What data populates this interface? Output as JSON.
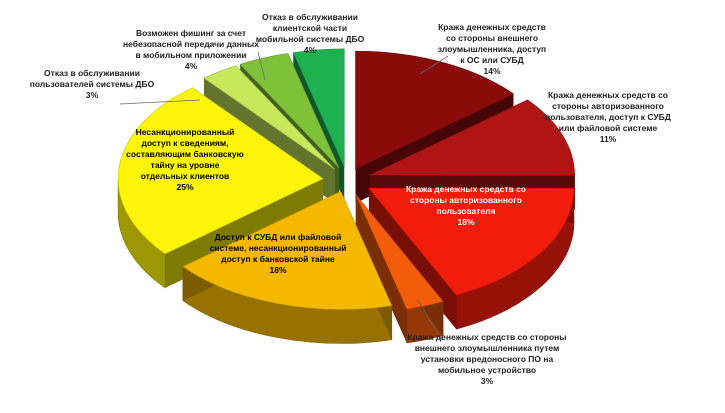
{
  "chart_data": {
    "type": "pie",
    "style": "3d-exploded",
    "title": "",
    "legend": "none",
    "slices": [
      {
        "label": "Кража денежных средств со стороны внешнего злоумышленника, доступ к ОС или СУБД",
        "value": 14,
        "value_label": "14%",
        "color": "#8b0a0a"
      },
      {
        "label": "Кража денежных средств со стороны авторизованного пользователя, доступ к СУБД или файловой системе",
        "value": 11,
        "value_label": "11%",
        "color": "#b01414"
      },
      {
        "label": "Кража денежных средств со стороны авторизованного пользователя",
        "value": 18,
        "value_label": "18%",
        "color": "#f21c0c"
      },
      {
        "label": "Кража денежных средств со стороны внешнего злоумышленника путем установки вредоносного ПО на мобильное устройство",
        "value": 3,
        "value_label": "3%",
        "color": "#f25c0a"
      },
      {
        "label": "Доступ к СУБД или файловой системе, несанкционированный доступ к банковской тайне",
        "value": 18,
        "value_label": "18%",
        "color": "#f5b800"
      },
      {
        "label": "Несанкционированный доступ к сведениям, составляющим банковскую тайну на уровне отдельных клиентов",
        "value": 25,
        "value_label": "25%",
        "color": "#fcf50a"
      },
      {
        "label": "Отказ в обслуживании пользователей системы ДБО",
        "value": 3,
        "value_label": "3%",
        "color": "#c6e85a"
      },
      {
        "label": "Возможен фишинг за счет небезопасной передачи данных в мобильном приложении",
        "value": 4,
        "value_label": "4%",
        "color": "#7fc23a"
      },
      {
        "label": "Отказ в обслуживании клиентской части мобильной системы ДБО",
        "value": 4,
        "value_label": "4%",
        "color": "#1fb04f"
      }
    ]
  }
}
